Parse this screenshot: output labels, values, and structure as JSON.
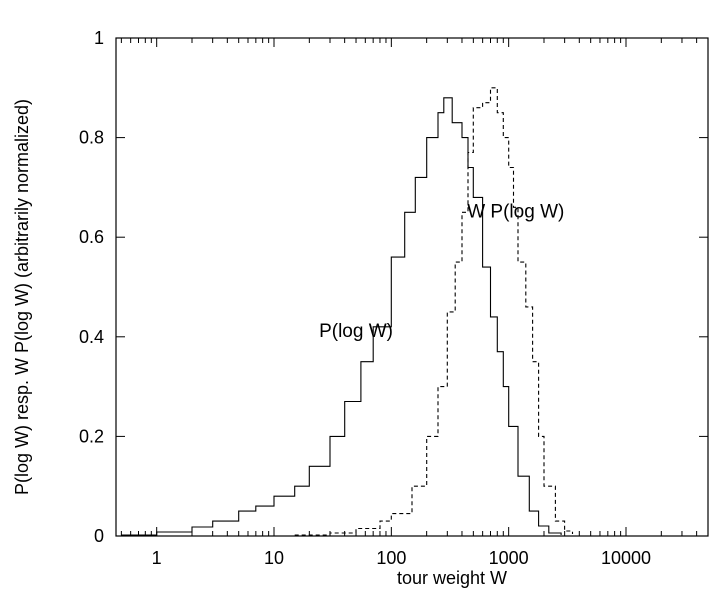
{
  "chart_data": {
    "type": "line",
    "xlabel": "tour weight W",
    "ylabel": "P(log W)   resp.  W P(log W)   (arbitrarily normalized)",
    "xscale": "log",
    "xlim": [
      0.45,
      50000
    ],
    "ylim": [
      0,
      1
    ],
    "x_ticks": [
      {
        "value": 1,
        "label": "1"
      },
      {
        "value": 10,
        "label": "10"
      },
      {
        "value": 100,
        "label": "100"
      },
      {
        "value": 1000,
        "label": "1000"
      },
      {
        "value": 10000,
        "label": "10000"
      }
    ],
    "y_ticks": [
      {
        "value": 0,
        "label": "0"
      },
      {
        "value": 0.2,
        "label": "0.2"
      },
      {
        "value": 0.4,
        "label": "0.4"
      },
      {
        "value": 0.6,
        "label": "0.6"
      },
      {
        "value": 0.8,
        "label": "0.8"
      },
      {
        "value": 1,
        "label": "1"
      }
    ],
    "grid": false,
    "annotations": [
      {
        "text": "P(log W)",
        "x": 50,
        "y": 0.4
      },
      {
        "text": "W P(log W)",
        "x": 1150,
        "y": 0.64
      }
    ],
    "series": [
      {
        "name": "P(log W)",
        "style": "solid",
        "points": [
          [
            0.5,
            0.002
          ],
          [
            1,
            0.008
          ],
          [
            2,
            0.018
          ],
          [
            3,
            0.03
          ],
          [
            5,
            0.05
          ],
          [
            7,
            0.06
          ],
          [
            10,
            0.08
          ],
          [
            15,
            0.1
          ],
          [
            20,
            0.14
          ],
          [
            30,
            0.2
          ],
          [
            40,
            0.27
          ],
          [
            55,
            0.35
          ],
          [
            70,
            0.42
          ],
          [
            100,
            0.56
          ],
          [
            130,
            0.65
          ],
          [
            160,
            0.72
          ],
          [
            200,
            0.8
          ],
          [
            250,
            0.85
          ],
          [
            280,
            0.88
          ],
          [
            330,
            0.83
          ],
          [
            400,
            0.8
          ],
          [
            450,
            0.74
          ],
          [
            500,
            0.68
          ],
          [
            600,
            0.54
          ],
          [
            700,
            0.44
          ],
          [
            800,
            0.37
          ],
          [
            900,
            0.3
          ],
          [
            1000,
            0.22
          ],
          [
            1200,
            0.12
          ],
          [
            1500,
            0.05
          ],
          [
            1800,
            0.02
          ],
          [
            2200,
            0.006
          ],
          [
            2800,
            0.002
          ]
        ]
      },
      {
        "name": "W P(log W)",
        "style": "dashed",
        "points": [
          [
            15,
            0.002
          ],
          [
            30,
            0.006
          ],
          [
            50,
            0.015
          ],
          [
            80,
            0.03
          ],
          [
            100,
            0.045
          ],
          [
            150,
            0.1
          ],
          [
            200,
            0.2
          ],
          [
            250,
            0.3
          ],
          [
            300,
            0.45
          ],
          [
            350,
            0.55
          ],
          [
            400,
            0.65
          ],
          [
            450,
            0.77
          ],
          [
            500,
            0.86
          ],
          [
            600,
            0.87
          ],
          [
            700,
            0.9
          ],
          [
            800,
            0.85
          ],
          [
            900,
            0.8
          ],
          [
            1000,
            0.74
          ],
          [
            1100,
            0.66
          ],
          [
            1200,
            0.55
          ],
          [
            1400,
            0.46
          ],
          [
            1600,
            0.35
          ],
          [
            1800,
            0.2
          ],
          [
            2000,
            0.1
          ],
          [
            2500,
            0.03
          ],
          [
            3000,
            0.01
          ],
          [
            3500,
            0.004
          ]
        ]
      }
    ]
  }
}
